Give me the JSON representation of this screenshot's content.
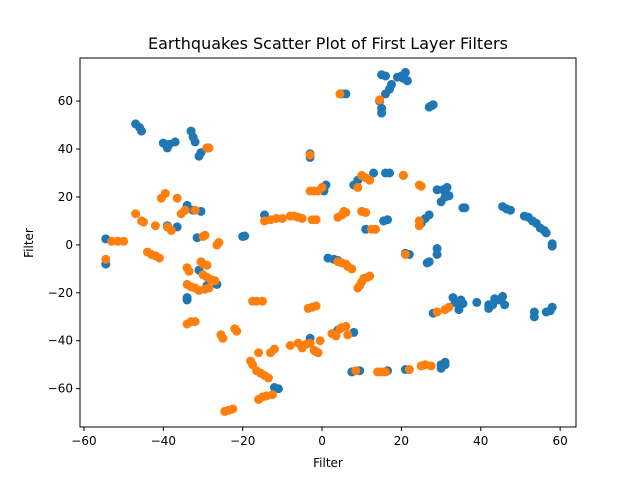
{
  "chart_data": {
    "type": "scatter",
    "title": "Earthquakes Scatter Plot of First Layer Filters",
    "xlabel": "Filter",
    "ylabel": "Filter",
    "xlim": [
      -61,
      64
    ],
    "ylim": [
      -76,
      78
    ],
    "xticks": [
      -60,
      -40,
      -20,
      0,
      20,
      40,
      60
    ],
    "yticks": [
      -60,
      -40,
      -20,
      0,
      20,
      40,
      60
    ],
    "grid": false,
    "series": [
      {
        "color": "#1f77b4",
        "points": [
          [
            -54.5,
            2.5
          ],
          [
            -54.5,
            -8
          ],
          [
            -47,
            50.5
          ],
          [
            -46,
            49
          ],
          [
            -45.5,
            47.5
          ],
          [
            -40,
            42.5
          ],
          [
            -39,
            40.5
          ],
          [
            -38.5,
            42
          ],
          [
            -37,
            43
          ],
          [
            -33,
            47.5
          ],
          [
            -32.5,
            45
          ],
          [
            -32,
            43
          ],
          [
            -31,
            37
          ],
          [
            -30.5,
            38.5
          ],
          [
            -29,
            40.5
          ],
          [
            -39,
            8
          ],
          [
            -36.5,
            7.5
          ],
          [
            -34,
            16.5
          ],
          [
            -32.5,
            14.5
          ],
          [
            -30.5,
            14
          ],
          [
            -34,
            -22
          ],
          [
            -34,
            -23
          ],
          [
            -31,
            -10.5
          ],
          [
            -29,
            -17
          ],
          [
            -26.5,
            -16.5
          ],
          [
            -31.5,
            3
          ],
          [
            -20,
            3.5
          ],
          [
            -19.5,
            3.7
          ],
          [
            -12,
            -59.5
          ],
          [
            -11,
            -60
          ],
          [
            -14.5,
            12.5
          ],
          [
            -3,
            36.5
          ],
          [
            -3,
            38
          ],
          [
            0.5,
            22.5
          ],
          [
            1,
            25
          ],
          [
            1.5,
            -5.5
          ],
          [
            3,
            -6
          ],
          [
            4,
            -6.5
          ],
          [
            -3,
            -39
          ],
          [
            4,
            -35.5
          ],
          [
            8,
            -36.5
          ],
          [
            -1.5,
            -44.5
          ],
          [
            5,
            63
          ],
          [
            6,
            63
          ],
          [
            8,
            25
          ],
          [
            9,
            27
          ],
          [
            11,
            6.5
          ],
          [
            13,
            30
          ],
          [
            15.5,
            10
          ],
          [
            16.5,
            10.5
          ],
          [
            14.5,
            60
          ],
          [
            15,
            57
          ],
          [
            15,
            55
          ],
          [
            15,
            71
          ],
          [
            16,
            70.5
          ],
          [
            16,
            63
          ],
          [
            17,
            65
          ],
          [
            17.5,
            67
          ],
          [
            19,
            70
          ],
          [
            20,
            70.5
          ],
          [
            20.5,
            69.5
          ],
          [
            21,
            72
          ],
          [
            21.5,
            68.5
          ],
          [
            16,
            30
          ],
          [
            17,
            30
          ],
          [
            20.5,
            29
          ],
          [
            7.5,
            -53
          ],
          [
            9.5,
            -52.5
          ],
          [
            16.5,
            -52.5
          ],
          [
            21,
            -52
          ],
          [
            22,
            -52
          ],
          [
            21,
            -3.5
          ],
          [
            22,
            -4
          ],
          [
            26.5,
            -7.5
          ],
          [
            27,
            -7
          ],
          [
            25,
            9
          ],
          [
            26,
            11
          ],
          [
            27,
            12.5
          ],
          [
            27,
            57.5
          ],
          [
            27.5,
            58
          ],
          [
            28,
            58.5
          ],
          [
            29,
            23
          ],
          [
            30.5,
            23
          ],
          [
            31.5,
            24
          ],
          [
            30,
            18
          ],
          [
            31,
            20
          ],
          [
            32,
            20.5
          ],
          [
            29,
            -1.5
          ],
          [
            29,
            -4
          ],
          [
            28,
            -28.5
          ],
          [
            29,
            -28
          ],
          [
            30,
            -50
          ],
          [
            31,
            -50
          ],
          [
            31,
            -49
          ],
          [
            30,
            -51.5
          ],
          [
            33,
            -22
          ],
          [
            33.5,
            -24
          ],
          [
            34.5,
            -25
          ],
          [
            34.5,
            -27
          ],
          [
            35,
            -23
          ],
          [
            35.5,
            -24.5
          ],
          [
            35.5,
            15.5
          ],
          [
            36,
            15.5
          ],
          [
            39,
            -24
          ],
          [
            42,
            -25
          ],
          [
            42,
            -26.5
          ],
          [
            43,
            -25
          ],
          [
            43.5,
            -22.5
          ],
          [
            44.5,
            -23
          ],
          [
            45.5,
            -21.5
          ],
          [
            46,
            -25
          ],
          [
            45.5,
            16
          ],
          [
            46.5,
            15
          ],
          [
            47.5,
            14.5
          ],
          [
            51,
            12
          ],
          [
            52,
            11.5
          ],
          [
            53,
            10
          ],
          [
            54,
            9
          ],
          [
            55,
            7
          ],
          [
            56,
            6
          ],
          [
            56.5,
            5
          ],
          [
            58,
            0.5
          ],
          [
            58,
            -0.5
          ],
          [
            53.5,
            -28
          ],
          [
            53.5,
            -30
          ],
          [
            56.5,
            -28
          ],
          [
            57.5,
            -27.5
          ],
          [
            58,
            -26
          ]
        ]
      },
      {
        "color": "#ff7f0e",
        "points": [
          [
            -54.5,
            -6
          ],
          [
            -53,
            1.5
          ],
          [
            -51.5,
            1.5
          ],
          [
            -50,
            1.5
          ],
          [
            -47,
            13
          ],
          [
            -45.5,
            10
          ],
          [
            -45,
            9.5
          ],
          [
            -44,
            -3
          ],
          [
            -43,
            -4
          ],
          [
            -42,
            -4.5
          ],
          [
            -41,
            -5.5
          ],
          [
            -42,
            8
          ],
          [
            -40.5,
            19.5
          ],
          [
            -39.5,
            21.5
          ],
          [
            -39,
            7.5
          ],
          [
            -38,
            6
          ],
          [
            -36.5,
            19.5
          ],
          [
            -35.5,
            13
          ],
          [
            -34.5,
            14.5
          ],
          [
            -32,
            14.5
          ],
          [
            -30,
            3.5
          ],
          [
            -29.5,
            4
          ],
          [
            -30.5,
            -7
          ],
          [
            -30,
            -8
          ],
          [
            -29,
            -8.5
          ],
          [
            -34,
            -9.5
          ],
          [
            -33.5,
            -11
          ],
          [
            -34,
            -16.5
          ],
          [
            -33,
            -17.5
          ],
          [
            -32,
            -18
          ],
          [
            -31,
            -19
          ],
          [
            -29.5,
            -18.5
          ],
          [
            -28.5,
            -18
          ],
          [
            -30,
            -12.5
          ],
          [
            -29,
            -13.5
          ],
          [
            -28,
            -14.5
          ],
          [
            -27,
            -15
          ],
          [
            -26.5,
            0
          ],
          [
            -26,
            1
          ],
          [
            -34,
            -33
          ],
          [
            -33,
            -32
          ],
          [
            -32,
            -32
          ],
          [
            -29,
            40.5
          ],
          [
            -28.5,
            40.5
          ],
          [
            -25.5,
            -37.5
          ],
          [
            -25,
            -39
          ],
          [
            -22,
            -35
          ],
          [
            -21.5,
            -36
          ],
          [
            -24.5,
            -69.5
          ],
          [
            -23.5,
            -69
          ],
          [
            -22.5,
            -68.5
          ],
          [
            -18,
            -48.5
          ],
          [
            -17.5,
            -50
          ],
          [
            -16.5,
            -52.5
          ],
          [
            -15.5,
            -53.5
          ],
          [
            -14.5,
            -54.5
          ],
          [
            -13.5,
            -55.5
          ],
          [
            -17.5,
            -23.5
          ],
          [
            -16.5,
            -23.5
          ],
          [
            -15,
            -23.5
          ],
          [
            -16,
            -45
          ],
          [
            -13,
            -45
          ],
          [
            -12,
            -43.5
          ],
          [
            -16,
            -64.5
          ],
          [
            -15,
            -63.5
          ],
          [
            -14,
            -63
          ],
          [
            -12.5,
            -62.5
          ],
          [
            -14.5,
            10
          ],
          [
            -13,
            10.5
          ],
          [
            -11.5,
            11
          ],
          [
            -10,
            11
          ],
          [
            -8,
            12
          ],
          [
            -7,
            12
          ],
          [
            -6,
            11.5
          ],
          [
            -5,
            11
          ],
          [
            -3.5,
            -26.5
          ],
          [
            -2.5,
            -26
          ],
          [
            -1.5,
            -25.5
          ],
          [
            -3,
            22.5
          ],
          [
            -2,
            22.5
          ],
          [
            -1,
            22.5
          ],
          [
            0,
            24
          ],
          [
            -3,
            37.5
          ],
          [
            -2.5,
            10.5
          ],
          [
            -1.5,
            10.5
          ],
          [
            -8,
            -42
          ],
          [
            -6,
            -41
          ],
          [
            -5,
            -43
          ],
          [
            -4,
            -41.5
          ],
          [
            -3,
            -41
          ],
          [
            -2,
            -44
          ],
          [
            -1,
            -45
          ],
          [
            -0.5,
            -40
          ],
          [
            2.5,
            -37
          ],
          [
            3.5,
            -38
          ],
          [
            4.5,
            -35
          ],
          [
            5,
            -34.5
          ],
          [
            6,
            -34
          ],
          [
            6.5,
            -37.5
          ],
          [
            4,
            11.5
          ],
          [
            5,
            12.5
          ],
          [
            5.5,
            14
          ],
          [
            6,
            13.5
          ],
          [
            4,
            -7
          ],
          [
            5,
            -7.5
          ],
          [
            6,
            -8
          ],
          [
            6.5,
            -9
          ],
          [
            7.5,
            -10
          ],
          [
            4.5,
            63
          ],
          [
            8.5,
            -52.5
          ],
          [
            9,
            -18
          ],
          [
            9.5,
            -17
          ],
          [
            10,
            -15.5
          ],
          [
            10.5,
            -14
          ],
          [
            11.5,
            -13.5
          ],
          [
            12,
            -13
          ],
          [
            9,
            24
          ],
          [
            10,
            29
          ],
          [
            11,
            28
          ],
          [
            12,
            27
          ],
          [
            10,
            14
          ],
          [
            11,
            13.5
          ],
          [
            12.5,
            6.5
          ],
          [
            13.5,
            6.5
          ],
          [
            14,
            -53
          ],
          [
            15,
            -53
          ],
          [
            16,
            -53
          ],
          [
            14.5,
            60.5
          ],
          [
            20.5,
            29
          ],
          [
            21,
            -4
          ],
          [
            22,
            -52
          ],
          [
            24.5,
            25
          ],
          [
            25,
            24.5
          ],
          [
            24.5,
            10
          ],
          [
            24.5,
            8
          ],
          [
            25,
            -50.5
          ],
          [
            26,
            -50
          ],
          [
            27.5,
            -50.5
          ],
          [
            29,
            -28
          ],
          [
            31,
            -27
          ],
          [
            32,
            -26
          ]
        ]
      }
    ]
  }
}
